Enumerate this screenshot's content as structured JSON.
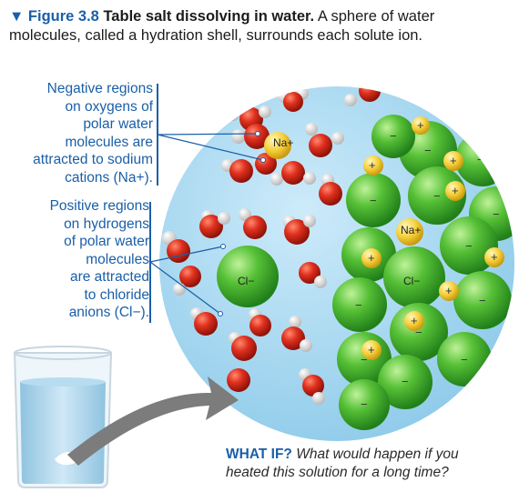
{
  "caption": {
    "figure_label": "▼ Figure 3.8",
    "title": "Table salt dissolving in water.",
    "text_line1": "A sphere of water",
    "text_line2": "molecules, called a hydration shell, surrounds each solute ion."
  },
  "labels": {
    "negative": [
      "Negative regions",
      "on oxygens of",
      "polar water",
      "molecules are",
      "attracted to sodium",
      "cations (Na+)."
    ],
    "positive": [
      "Positive regions",
      "on hydrogens",
      "of polar water",
      "molecules",
      "are attracted",
      "to chloride",
      "anions (Cl−)."
    ]
  },
  "ions": {
    "sodium_dissolved": "Na+",
    "chloride_dissolved": "Cl−",
    "sodium_crystal": "Na+",
    "chloride_crystal": "Cl−",
    "plus": "+",
    "minus": "−"
  },
  "whatif": {
    "heading": "WHAT IF?",
    "line1_rest": "What would happen if you",
    "line2": "heated this solution for a long time?"
  },
  "colors": {
    "accent_blue": "#1a5fa8",
    "water_sphere": "#a8d8f0",
    "oxygen_red": "#d62a1e",
    "chloride_green": "#4cb82e",
    "sodium_yellow": "#f7d23c",
    "arrow_gray": "#7c7c7c"
  }
}
